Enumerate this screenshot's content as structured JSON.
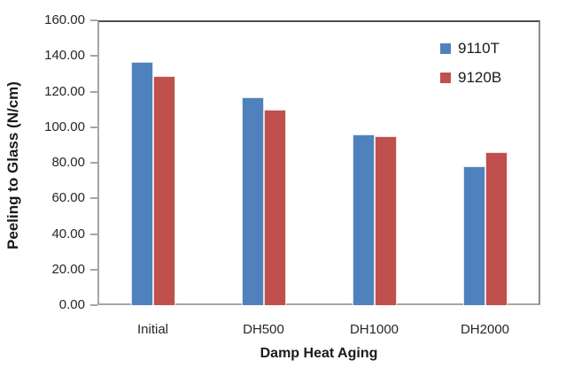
{
  "chart_data": {
    "type": "bar",
    "title": "",
    "xlabel": "Damp Heat Aging",
    "ylabel": "Peeling to Glass (N/cm)",
    "categories": [
      "Initial",
      "DH500",
      "DH1000",
      "DH2000"
    ],
    "series": [
      {
        "name": "9110T",
        "color": "#4F81BD",
        "border_color": "#dde5f0",
        "values": [
          136.5,
          117.0,
          96.0,
          78.0
        ]
      },
      {
        "name": "9120B",
        "color": "#C0504D",
        "border_color": "#f0dfde",
        "values": [
          128.5,
          110.0,
          95.0,
          86.0
        ]
      }
    ],
    "ylim": [
      0,
      160
    ],
    "ytick_step": 20,
    "ytick_labels": [
      "0.00",
      "20.00",
      "40.00",
      "60.00",
      "80.00",
      "100.00",
      "120.00",
      "140.00",
      "160.00"
    ],
    "grid": false,
    "legend_position": "inside-top-right",
    "colors": {
      "axis_line": "#a6a6a6",
      "plot_border_top": "#4d4d4d",
      "text": "#262626",
      "background": "#ffffff"
    }
  }
}
